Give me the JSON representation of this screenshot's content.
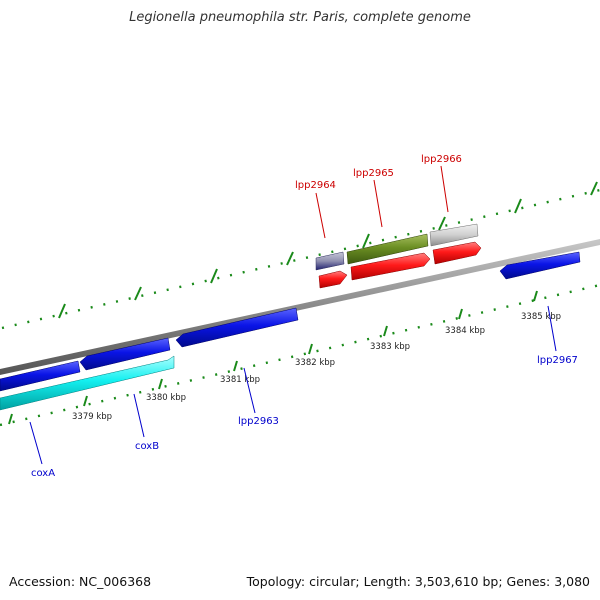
{
  "title": "Legionella pneumophila str. Paris, complete genome",
  "footer": {
    "accession": "Accession: NC_006368",
    "summary": "Topology: circular; Length: 3,503,610 bp; Genes: 3,080"
  },
  "colors": {
    "backbone": "#8a8a8a",
    "ticks": "#1a8a1a",
    "forward_label": "#cc0000",
    "reverse_label": "#0000cc",
    "blue_gene": "#0a14e6",
    "cyan_gene": "#14f0f0",
    "red_gene": "#ff1a1a",
    "olive_gene": "#6b8e23",
    "grey_gene": "#cfcfcf"
  },
  "scale_labels": [
    "3379 kbp",
    "3380 kbp",
    "3381 kbp",
    "3382 kbp",
    "3383 kbp",
    "3384 kbp",
    "3385 kbp"
  ],
  "gene_labels": {
    "lpp2964": "lpp2964",
    "lpp2965": "lpp2965",
    "lpp2966": "lpp2966",
    "lpp2963": "lpp2963",
    "lpp2967": "lpp2967",
    "coxA": "coxA",
    "coxB": "coxB"
  }
}
